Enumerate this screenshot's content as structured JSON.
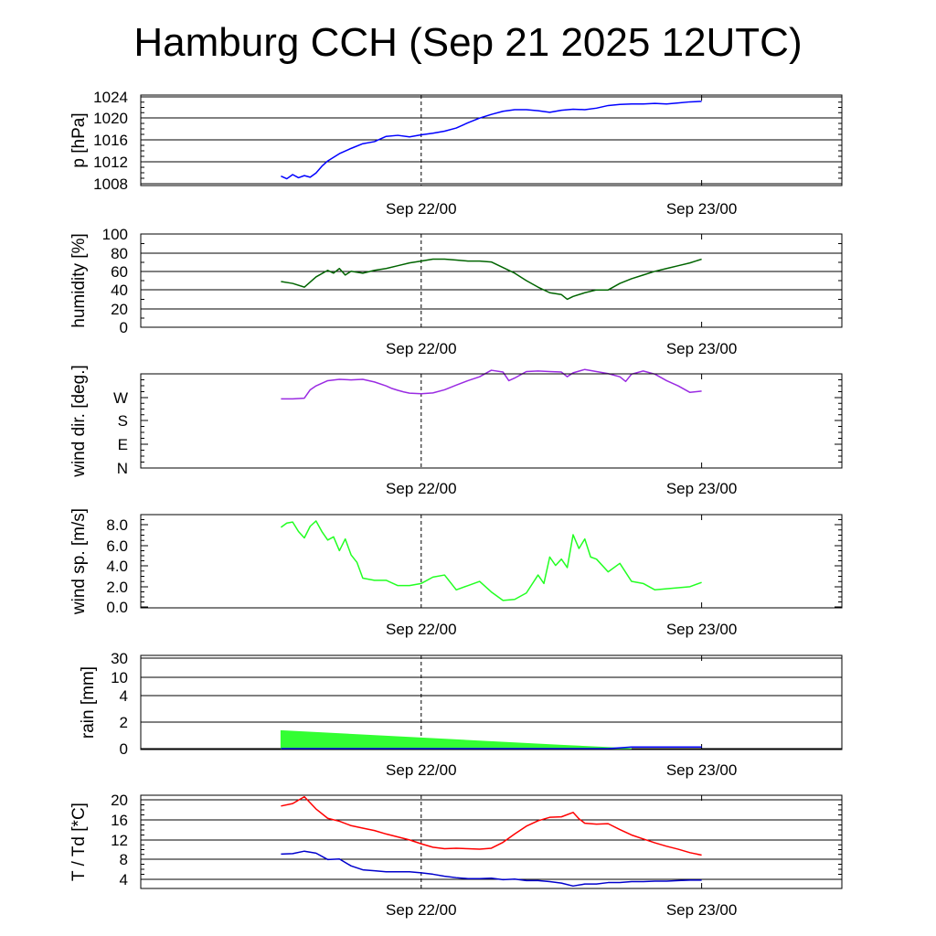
{
  "title": "Hamburg CCH (Sep 21 2025 12UTC)",
  "colors": {
    "pressure": "#0000ff",
    "humidity": "#006400",
    "wind_dir": "#9a2be2",
    "wind_speed": "#22ff22",
    "rain_fill": "#33ff33",
    "rain_line": "#0000ff",
    "temperature": "#ff0000",
    "dewpoint": "#0000cc"
  },
  "chart_data": [
    {
      "type": "line",
      "ylabel": "p [hPa]",
      "yticks": [
        "1008",
        "1012",
        "1016",
        "1020",
        "1024"
      ],
      "ylim": [
        1007.5,
        1024.8
      ],
      "xlim": [
        -12,
        48
      ],
      "xticks": [
        {
          "x": 12,
          "label": "Sep 22/00"
        },
        {
          "x": 36,
          "label": "Sep 23/00"
        }
      ],
      "series": [
        {
          "color_key": "pressure",
          "x": [
            0,
            0.5,
            1,
            1.5,
            2,
            2.5,
            3,
            3.5,
            4,
            5,
            6,
            7,
            8,
            9,
            10,
            11,
            12,
            13,
            14,
            15,
            16,
            17,
            18,
            19,
            20,
            21,
            22,
            23,
            24,
            25,
            26,
            27,
            28,
            29,
            30,
            31,
            32,
            33,
            34,
            35,
            36
          ],
          "y": [
            1009.3,
            1008.8,
            1009.6,
            1009.0,
            1009.4,
            1009.1,
            1009.9,
            1011.2,
            1012.2,
            1013.6,
            1014.6,
            1015.5,
            1015.9,
            1016.9,
            1017.1,
            1016.8,
            1017.2,
            1017.5,
            1017.9,
            1018.5,
            1019.5,
            1020.4,
            1021.1,
            1021.7,
            1022.0,
            1022.0,
            1021.8,
            1021.5,
            1021.9,
            1022.1,
            1022.0,
            1022.3,
            1022.8,
            1023.0,
            1023.1,
            1023.1,
            1023.2,
            1023.1,
            1023.3,
            1023.5,
            1023.6
          ]
        }
      ]
    },
    {
      "type": "line",
      "ylabel": "humidity [%]",
      "yticks": [
        "0",
        "20",
        "40",
        "60",
        "80",
        "100"
      ],
      "ylim": [
        0,
        100
      ],
      "xlim": [
        -12,
        48
      ],
      "xticks": [
        {
          "x": 12,
          "label": "Sep 22/00"
        },
        {
          "x": 36,
          "label": "Sep 23/00"
        }
      ],
      "series": [
        {
          "color_key": "humidity",
          "x": [
            0,
            1,
            2,
            3,
            4,
            4.5,
            5,
            5.5,
            6,
            7,
            8,
            9,
            10,
            11,
            12,
            13,
            14,
            15,
            16,
            17,
            18,
            19,
            20,
            21,
            22,
            23,
            24,
            24.5,
            25,
            26,
            27,
            28,
            29,
            30,
            31,
            32,
            33,
            34,
            35,
            36
          ],
          "y": [
            49,
            47,
            43,
            54,
            61,
            58,
            63,
            56,
            60,
            58,
            61,
            63,
            66,
            69,
            71,
            73,
            73,
            72,
            71,
            71,
            70,
            64,
            58,
            50,
            43,
            37,
            35,
            30,
            33,
            37,
            40,
            40,
            47,
            52,
            56,
            60,
            63,
            66,
            69,
            73
          ]
        }
      ]
    },
    {
      "type": "line",
      "ylabel": "wind dir. [deg.]",
      "yticks": [
        "N",
        "E",
        "S",
        "W"
      ],
      "ylim": [
        0,
        400
      ],
      "xlim": [
        -12,
        48
      ],
      "xticks": [
        {
          "x": 12,
          "label": "Sep 22/00"
        },
        {
          "x": 36,
          "label": "Sep 23/00"
        }
      ],
      "series": [
        {
          "color_key": "wind_dir",
          "x": [
            0,
            1,
            2,
            2.5,
            3,
            4,
            5,
            6,
            7,
            8,
            9,
            9.5,
            10,
            10.5,
            11,
            12,
            13,
            14,
            15,
            16,
            17,
            18,
            19,
            19.5,
            20,
            21,
            22,
            23,
            24,
            24.5,
            25,
            26,
            27,
            28,
            29,
            29.5,
            30,
            31,
            32,
            33,
            34,
            35,
            36
          ],
          "y": [
            265,
            265,
            268,
            300,
            315,
            335,
            340,
            338,
            340,
            330,
            315,
            305,
            298,
            292,
            287,
            285,
            288,
            300,
            318,
            335,
            350,
            375,
            368,
            335,
            345,
            370,
            372,
            370,
            368,
            350,
            365,
            378,
            370,
            362,
            350,
            332,
            360,
            372,
            360,
            335,
            315,
            290,
            295
          ]
        }
      ]
    },
    {
      "type": "line",
      "ylabel": "wind sp. [m/s]",
      "yticks": [
        "0.0",
        "2.0",
        "4.0",
        "6.0",
        "8.0"
      ],
      "ylim": [
        0,
        8.8
      ],
      "xlim": [
        -12,
        48
      ],
      "xticks": [
        {
          "x": 12,
          "label": "Sep 22/00"
        },
        {
          "x": 36,
          "label": "Sep 23/00"
        }
      ],
      "series": [
        {
          "color_key": "wind_speed",
          "x": [
            0,
            0.5,
            1,
            1.5,
            2,
            2.5,
            3,
            3.5,
            4,
            4.5,
            5,
            5.5,
            6,
            6.5,
            7,
            8,
            9,
            10,
            11,
            12,
            13,
            14,
            15,
            16,
            17,
            18,
            19,
            20,
            21,
            22,
            22.5,
            23,
            23.5,
            24,
            24.5,
            25,
            25.5,
            26,
            26.5,
            27,
            28,
            29,
            30,
            31,
            32,
            33,
            34,
            35,
            36
          ],
          "y": [
            7.6,
            8.0,
            8.1,
            7.2,
            6.6,
            7.7,
            8.2,
            7.2,
            6.4,
            6.7,
            5.4,
            6.5,
            5.0,
            4.3,
            2.8,
            2.6,
            2.6,
            2.1,
            2.1,
            2.3,
            2.9,
            3.1,
            1.7,
            2.1,
            2.5,
            1.5,
            0.7,
            0.8,
            1.4,
            3.1,
            2.3,
            4.8,
            4.0,
            4.6,
            3.8,
            6.9,
            5.6,
            6.5,
            4.8,
            4.6,
            3.4,
            4.2,
            2.5,
            2.3,
            1.7,
            1.8,
            1.9,
            2.0,
            2.4
          ]
        }
      ]
    },
    {
      "type": "area",
      "ylabel": "rain [mm]",
      "yticks": [
        "0",
        "2",
        "4",
        "10",
        "30"
      ],
      "ylim": [
        0,
        35
      ],
      "xlim": [
        -12,
        48
      ],
      "xticks": [
        {
          "x": 12,
          "label": "Sep 22/00"
        },
        {
          "x": 36,
          "label": "Sep 23/00"
        }
      ],
      "series": [
        {
          "color_key": "rain_fill",
          "x": [
            0,
            12,
            24,
            30
          ],
          "y": [
            1.35,
            0.8,
            0.25,
            0.0
          ]
        },
        {
          "color_key": "rain_line",
          "x": [
            0,
            28,
            30,
            36
          ],
          "y": [
            0,
            0,
            0.12,
            0.12
          ]
        }
      ]
    },
    {
      "type": "line",
      "ylabel": "T / Td [*C]",
      "yticks": [
        "4",
        "8",
        "12",
        "16",
        "20"
      ],
      "ylim": [
        2,
        21
      ],
      "xlim": [
        -12,
        48
      ],
      "xticks": [
        {
          "x": 12,
          "label": "Sep 22/00"
        },
        {
          "x": 36,
          "label": "Sep 23/00"
        }
      ],
      "series": [
        {
          "name": "T",
          "color_key": "temperature",
          "x": [
            0,
            1,
            2,
            3,
            4,
            5,
            6,
            7,
            8,
            9,
            10,
            11,
            12,
            13,
            14,
            15,
            16,
            17,
            18,
            19,
            20,
            21,
            22,
            23,
            24,
            25,
            25.5,
            26,
            27,
            28,
            29,
            30,
            31,
            32,
            33,
            34,
            35,
            36
          ],
          "y": [
            18.8,
            19.3,
            20.7,
            18.2,
            16.3,
            15.7,
            14.8,
            14.3,
            13.8,
            13.1,
            12.5,
            11.9,
            11.1,
            10.4,
            10.1,
            10.2,
            10.1,
            10.0,
            10.2,
            11.4,
            13.1,
            14.7,
            15.8,
            16.5,
            16.6,
            17.5,
            16.2,
            15.3,
            15.1,
            15.2,
            14.0,
            12.9,
            12.1,
            11.3,
            10.6,
            10.0,
            9.3,
            8.8
          ]
        },
        {
          "name": "Td",
          "color_key": "dewpoint",
          "x": [
            0,
            1,
            2,
            3,
            4,
            5,
            6,
            7,
            8,
            9,
            10,
            11,
            12,
            13,
            14,
            15,
            16,
            17,
            18,
            19,
            20,
            21,
            22,
            23,
            24,
            25,
            26,
            27,
            28,
            29,
            30,
            31,
            32,
            33,
            34,
            35,
            36
          ],
          "y": [
            9.0,
            9.1,
            9.6,
            9.2,
            7.9,
            8.0,
            6.6,
            5.8,
            5.6,
            5.4,
            5.4,
            5.4,
            5.2,
            4.9,
            4.5,
            4.2,
            4.0,
            4.0,
            4.1,
            3.8,
            3.9,
            3.6,
            3.6,
            3.4,
            3.1,
            2.5,
            2.9,
            2.9,
            3.2,
            3.2,
            3.4,
            3.4,
            3.5,
            3.5,
            3.6,
            3.7,
            3.7
          ]
        }
      ]
    }
  ]
}
